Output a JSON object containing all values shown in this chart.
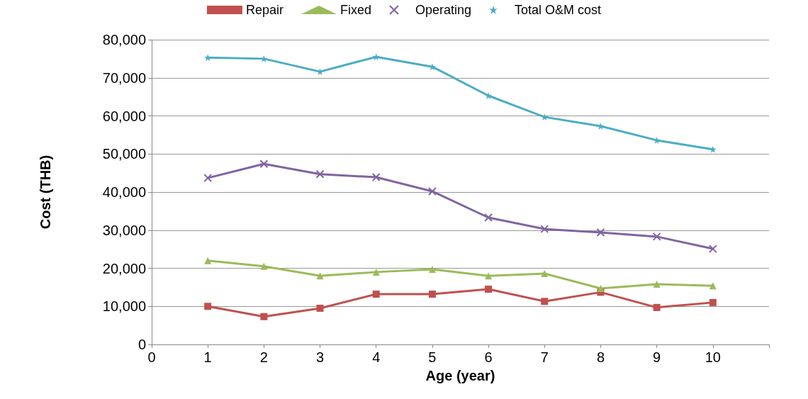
{
  "chart_data": {
    "type": "line",
    "xlabel": "Age (year)",
    "ylabel": "Cost (THB)",
    "x": [
      1,
      2,
      3,
      4,
      5,
      6,
      7,
      8,
      9,
      10
    ],
    "xlim": [
      0,
      11
    ],
    "xticks": [
      0,
      1,
      2,
      3,
      4,
      5,
      6,
      7,
      8,
      9,
      10,
      {
        "value": 11,
        "label": null
      }
    ],
    "ylim": [
      0,
      80000
    ],
    "yticks": [
      {
        "value": 0,
        "label": "0"
      },
      {
        "value": 10000,
        "label": "10,000"
      },
      {
        "value": 20000,
        "label": "20,000"
      },
      {
        "value": 30000,
        "label": "30,000"
      },
      {
        "value": 40000,
        "label": "40,000"
      },
      {
        "value": 50000,
        "label": "50,000"
      },
      {
        "value": 60000,
        "label": "60,000"
      },
      {
        "value": 70000,
        "label": "70,000"
      },
      {
        "value": 80000,
        "label": "80,000"
      }
    ],
    "grid": "y",
    "legend": "top",
    "series": [
      {
        "name": "Repair",
        "color": "#c0504d",
        "marker": "square",
        "values": [
          10000,
          7300,
          9500,
          13200,
          13200,
          14500,
          11300,
          13700,
          9700,
          11000
        ]
      },
      {
        "name": "Fixed",
        "color": "#9bbb59",
        "marker": "triangle",
        "values": [
          22000,
          20500,
          18000,
          19000,
          19700,
          18000,
          18600,
          14700,
          15800,
          15400
        ]
      },
      {
        "name": "Operating",
        "color": "#8064a2",
        "marker": "cross",
        "values": [
          43700,
          47400,
          44700,
          43900,
          40200,
          33300,
          30300,
          29400,
          28300,
          25100
        ]
      },
      {
        "name": "Total O&M cost",
        "color": "#4bacc6",
        "marker": "star",
        "values": [
          75300,
          75000,
          71600,
          75500,
          72900,
          65300,
          59700,
          57300,
          53600,
          51200
        ]
      }
    ]
  }
}
